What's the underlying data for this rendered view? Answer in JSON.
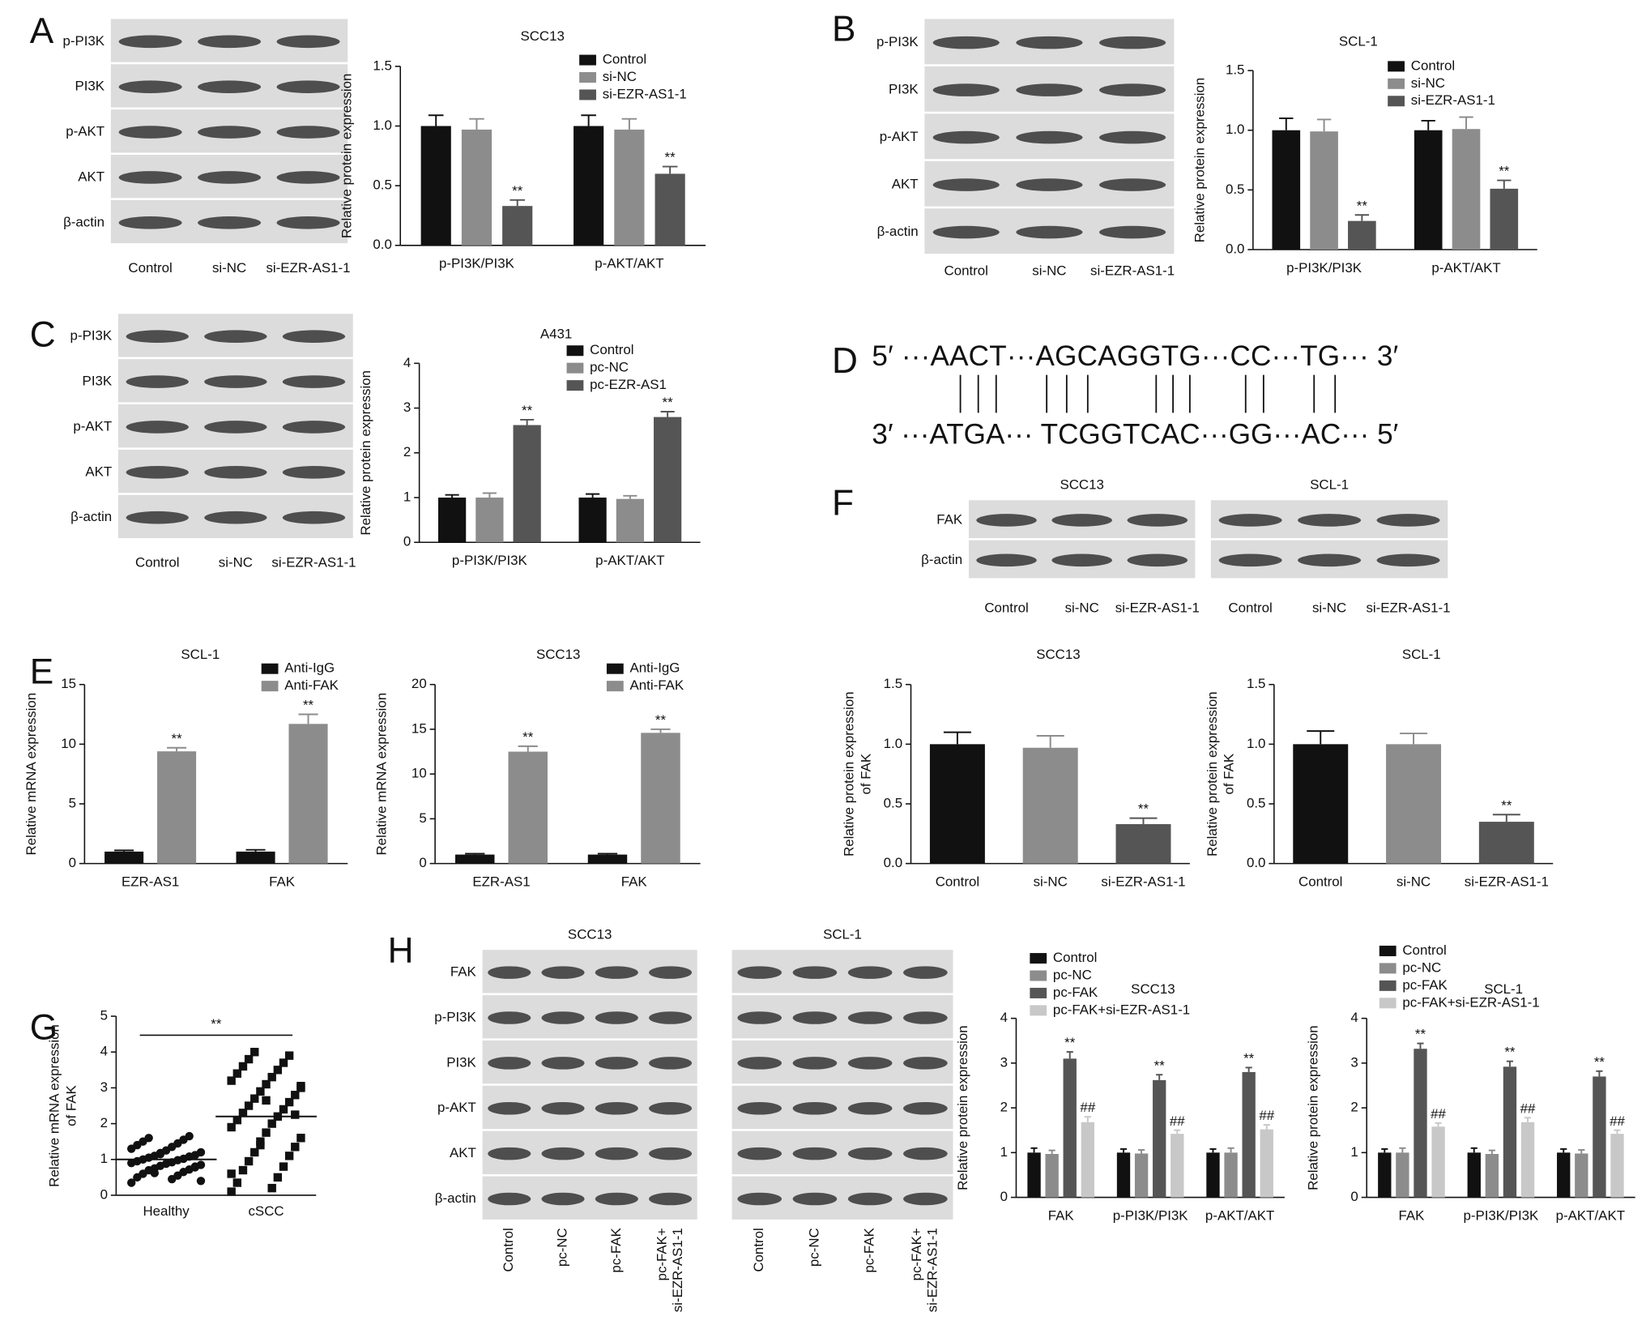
{
  "panels": [
    "A",
    "B",
    "C",
    "D",
    "E",
    "F",
    "G",
    "H"
  ],
  "sequence": {
    "top": "5′ ···AACT···AGCAGGTG···CC···TG··· 3′",
    "bottom": "3′ ···ATGA··· TCGGTCAC···GG···AC··· 5′"
  },
  "blots": [
    {
      "rows": [
        "p-PI3K",
        "PI3K",
        "p-AKT",
        "AKT",
        "β-actin"
      ],
      "columns": [
        "Control",
        "si-NC",
        "si-EZR-AS1-1"
      ]
    },
    {
      "rows": [
        "p-PI3K",
        "PI3K",
        "p-AKT",
        "AKT",
        "β-actin"
      ],
      "columns": [
        "Control",
        "si-NC",
        "si-EZR-AS1-1"
      ]
    },
    {
      "rows": [
        "p-PI3K",
        "PI3K",
        "p-AKT",
        "AKT",
        "β-actin"
      ],
      "columns": [
        "Control",
        "si-NC",
        "si-EZR-AS1-1"
      ]
    },
    {
      "title": "SCC13",
      "rows": [
        "FAK",
        "β-actin"
      ],
      "columns": [
        "Control",
        "si-NC",
        "si-EZR-AS1-1"
      ]
    },
    {
      "title": "SCL-1",
      "columns": [
        "Control",
        "si-NC",
        "si-EZR-AS1-1"
      ]
    },
    {
      "title": "SCC13",
      "rows": [
        "FAK",
        "p-PI3K",
        "PI3K",
        "p-AKT",
        "AKT",
        "β-actin"
      ],
      "columns": [
        "Control",
        "pc-NC",
        "pc-FAK",
        [
          "pc-FAK+",
          "si-EZR-AS1-1"
        ]
      ]
    },
    {
      "title": "SCL-1",
      "columns": [
        "Control",
        "pc-NC",
        "pc-FAK",
        [
          "pc-FAK+",
          "si-EZR-AS1-1"
        ]
      ]
    }
  ],
  "chart_data": [
    {
      "type": "bar",
      "title": "SCC13",
      "ylabel": "Relative protein expression",
      "legend": "upper right",
      "categories": [
        "p-PI3K/PI3K",
        "p-AKT/AKT"
      ],
      "ylim": [
        0,
        1.5
      ],
      "yticks": [
        {
          "value": 0,
          "label": "0.0"
        },
        0.5,
        {
          "value": 1,
          "label": "1.0"
        },
        1.5
      ],
      "series": [
        {
          "name": "Control",
          "color": "#111111",
          "values": [
            1.0,
            1.0
          ],
          "errors": [
            0.09,
            0.09
          ]
        },
        {
          "name": "si-NC",
          "color": "#8c8c8c",
          "values": [
            0.97,
            0.97
          ],
          "errors": [
            0.09,
            0.09
          ]
        },
        {
          "name": "si-EZR-AS1-1",
          "color": "#555555",
          "values": [
            0.33,
            0.6
          ],
          "errors": [
            0.05,
            0.06
          ],
          "annotations": [
            "**",
            "**"
          ]
        }
      ]
    },
    {
      "type": "bar",
      "title": "SCL-1",
      "ylabel": "Relative protein expression",
      "legend": "upper right",
      "categories": [
        "p-PI3K/PI3K",
        "p-AKT/AKT"
      ],
      "ylim": [
        0,
        1.5
      ],
      "yticks": [
        {
          "value": 0,
          "label": "0.0"
        },
        0.5,
        {
          "value": 1,
          "label": "1.0"
        },
        1.5
      ],
      "series": [
        {
          "name": "Control",
          "color": "#111111",
          "values": [
            1.0,
            1.0
          ],
          "errors": [
            0.1,
            0.08
          ]
        },
        {
          "name": "si-NC",
          "color": "#8c8c8c",
          "values": [
            0.99,
            1.01
          ],
          "errors": [
            0.1,
            0.1
          ]
        },
        {
          "name": "si-EZR-AS1-1",
          "color": "#555555",
          "values": [
            0.24,
            0.51
          ],
          "errors": [
            0.05,
            0.07
          ],
          "annotations": [
            "**",
            "**"
          ]
        }
      ]
    },
    {
      "type": "bar",
      "title": "A431",
      "ylabel": "Relative protein expression",
      "legend": "upper right",
      "categories": [
        "p-PI3K/PI3K",
        "p-AKT/AKT"
      ],
      "ylim": [
        0,
        4
      ],
      "yticks": [
        0,
        1,
        2,
        3,
        4
      ],
      "series": [
        {
          "name": "Control",
          "color": "#111111",
          "values": [
            1.0,
            1.0
          ],
          "errors": [
            0.06,
            0.08
          ]
        },
        {
          "name": "pc-NC",
          "color": "#8c8c8c",
          "values": [
            1.0,
            0.97
          ],
          "errors": [
            0.1,
            0.07
          ]
        },
        {
          "name": "pc-EZR-AS1",
          "color": "#555555",
          "values": [
            2.62,
            2.8
          ],
          "errors": [
            0.12,
            0.12
          ],
          "annotations": [
            "**",
            "**"
          ]
        }
      ]
    },
    {
      "type": "bar",
      "title": "SCL-1",
      "ylabel": "Relative mRNA expression",
      "legend": "upper right",
      "categories": [
        "EZR-AS1",
        "FAK"
      ],
      "ylim": [
        0,
        15
      ],
      "yticks": [
        0,
        5,
        10,
        15
      ],
      "series": [
        {
          "name": "Anti-IgG",
          "color": "#111111",
          "values": [
            1.0,
            1.0
          ],
          "errors": [
            0.1,
            0.15
          ]
        },
        {
          "name": "Anti-FAK",
          "color": "#8c8c8c",
          "values": [
            9.4,
            11.7
          ],
          "errors": [
            0.3,
            0.8
          ],
          "annotations": [
            "**",
            "**"
          ]
        }
      ]
    },
    {
      "type": "bar",
      "title": "SCC13",
      "ylabel": "Relative mRNA expression",
      "legend": "upper right",
      "categories": [
        "EZR-AS1",
        "FAK"
      ],
      "ylim": [
        0,
        20
      ],
      "yticks": [
        0,
        5,
        10,
        15,
        20
      ],
      "series": [
        {
          "name": "Anti-IgG",
          "color": "#111111",
          "values": [
            1.0,
            1.0
          ],
          "errors": [
            0.1,
            0.1
          ]
        },
        {
          "name": "Anti-FAK",
          "color": "#8c8c8c",
          "values": [
            12.5,
            14.6
          ],
          "errors": [
            0.6,
            0.4
          ],
          "annotations": [
            "**",
            "**"
          ]
        }
      ]
    },
    {
      "type": "bar",
      "title": "SCC13",
      "ylabel": [
        "Relative protein expression",
        "of FAK"
      ],
      "categories": [
        "Control",
        "si-NC",
        "si-EZR-AS1-1"
      ],
      "ylim": [
        0,
        1.5
      ],
      "yticks": [
        {
          "value": 0,
          "label": "0.0"
        },
        0.5,
        {
          "value": 1,
          "label": "1.0"
        },
        1.5
      ],
      "series": [
        {
          "colors": [
            "#111111",
            "#8c8c8c",
            "#555555"
          ],
          "values": [
            1.0,
            0.97,
            0.33
          ],
          "errors": [
            0.1,
            0.1,
            0.05
          ],
          "annotations": [
            null,
            null,
            "**"
          ]
        }
      ]
    },
    {
      "type": "bar",
      "title": "SCL-1",
      "ylabel": [
        "Relative protein expression",
        "of FAK"
      ],
      "categories": [
        "Control",
        "si-NC",
        "si-EZR-AS1-1"
      ],
      "ylim": [
        0,
        1.5
      ],
      "yticks": [
        {
          "value": 0,
          "label": "0.0"
        },
        0.5,
        {
          "value": 1,
          "label": "1.0"
        },
        1.5
      ],
      "series": [
        {
          "colors": [
            "#111111",
            "#8c8c8c",
            "#555555"
          ],
          "values": [
            1.0,
            1.0,
            0.35
          ],
          "errors": [
            0.11,
            0.09,
            0.06
          ],
          "annotations": [
            null,
            null,
            "**"
          ]
        }
      ]
    },
    {
      "type": "scatter",
      "ylabel": [
        "Relative mRNA expression",
        "of FAK"
      ],
      "categories": [
        "Healthy",
        "cSCC"
      ],
      "ylim": [
        0,
        5
      ],
      "yticks": [
        0,
        1,
        2,
        3,
        4,
        5
      ],
      "color": "#111111",
      "markers": [
        "circle",
        "square"
      ],
      "means": [
        1.0,
        2.2
      ],
      "annotation": "**",
      "points": [
        [
          0.35,
          0.45,
          0.5,
          0.55,
          0.6,
          0.65,
          0.7,
          0.72,
          0.75,
          0.8,
          0.82,
          0.85,
          0.88,
          0.9,
          0.92,
          0.95,
          0.98,
          1.0,
          1.02,
          1.05,
          1.08,
          1.1,
          1.12,
          1.15,
          1.2,
          1.25,
          1.3,
          1.35,
          1.4,
          1.45,
          1.5,
          1.55,
          1.6,
          1.65,
          0.62,
          0.78,
          1.18,
          0.4
        ],
        [
          0.1,
          0.2,
          0.35,
          0.5,
          0.7,
          0.8,
          0.95,
          1.1,
          1.2,
          1.35,
          1.5,
          1.6,
          1.75,
          1.9,
          2.0,
          2.1,
          2.2,
          2.3,
          2.4,
          2.5,
          2.6,
          2.7,
          2.8,
          2.9,
          3.0,
          3.1,
          3.2,
          3.3,
          3.4,
          3.5,
          3.6,
          3.7,
          3.8,
          3.9,
          4.0,
          2.25,
          1.4,
          3.05,
          2.65,
          0.6
        ]
      ]
    },
    {
      "type": "bar",
      "title": "SCC13",
      "ylabel": "Relative protein expression",
      "legend": "upper left",
      "categories": [
        "FAK",
        "p-PI3K/PI3K",
        "p-AKT/AKT"
      ],
      "ylim": [
        0,
        4
      ],
      "yticks": [
        0,
        1,
        2,
        3,
        4
      ],
      "series": [
        {
          "name": "Control",
          "color": "#111111",
          "values": [
            1.0,
            1.0,
            1.0
          ],
          "errors": [
            0.1,
            0.08,
            0.08
          ]
        },
        {
          "name": "pc-NC",
          "color": "#8c8c8c",
          "values": [
            0.97,
            0.98,
            1.0
          ],
          "errors": [
            0.08,
            0.08,
            0.1
          ]
        },
        {
          "name": "pc-FAK",
          "color": "#555555",
          "values": [
            3.1,
            2.62,
            2.8
          ],
          "errors": [
            0.15,
            0.12,
            0.1
          ],
          "annotations": [
            "**",
            "**",
            "**"
          ]
        },
        {
          "name": "pc-FAK+si-EZR-AS1-1",
          "color": "#c8c8c8",
          "values": [
            1.68,
            1.42,
            1.52
          ],
          "errors": [
            0.12,
            0.08,
            0.1
          ],
          "annotations": [
            "##",
            "##",
            "##"
          ]
        }
      ]
    },
    {
      "type": "bar",
      "title": "SCL-1",
      "ylabel": "Relative protein expression",
      "legend": "upper left",
      "categories": [
        "FAK",
        "p-PI3K/PI3K",
        "p-AKT/AKT"
      ],
      "ylim": [
        0,
        4
      ],
      "yticks": [
        0,
        1,
        2,
        3,
        4
      ],
      "series": [
        {
          "name": "Control",
          "color": "#111111",
          "values": [
            1.0,
            1.0,
            1.0
          ],
          "errors": [
            0.08,
            0.1,
            0.08
          ]
        },
        {
          "name": "pc-NC",
          "color": "#8c8c8c",
          "values": [
            1.0,
            0.97,
            0.98
          ],
          "errors": [
            0.1,
            0.08,
            0.08
          ]
        },
        {
          "name": "pc-FAK",
          "color": "#555555",
          "values": [
            3.32,
            2.92,
            2.7
          ],
          "errors": [
            0.12,
            0.12,
            0.12
          ],
          "annotations": [
            "**",
            "**",
            "**"
          ]
        },
        {
          "name": "pc-FAK+si-EZR-AS1-1",
          "color": "#c8c8c8",
          "values": [
            1.58,
            1.68,
            1.42
          ],
          "errors": [
            0.08,
            0.1,
            0.08
          ],
          "annotations": [
            "##",
            "##",
            "##"
          ]
        }
      ]
    }
  ]
}
